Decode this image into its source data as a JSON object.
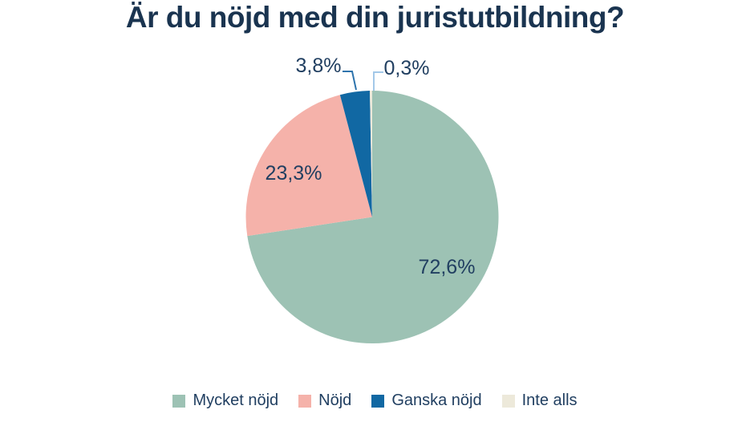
{
  "page": {
    "background": "#FFFFFF"
  },
  "chart_data": {
    "type": "pie",
    "title": "Är du nöjd med din juristutbildning?",
    "categories": [
      "Mycket nöjd",
      "Nöjd",
      "Ganska nöjd",
      "Inte alls"
    ],
    "values": [
      72.6,
      23.3,
      3.8,
      0.3
    ],
    "value_labels": [
      "72,6%",
      "23,3%",
      "3,8%",
      "0,3%"
    ],
    "colors": [
      "#9DC2B4",
      "#F5B2AA",
      "#1168A3",
      "#EDE9DA"
    ],
    "leader_colors": [
      null,
      null,
      "#2E74AD",
      "#A3C8E8"
    ],
    "start_angle_deg": 0,
    "direction": "clockwise",
    "legend_position": "bottom",
    "title_color": "#1A3450",
    "text_color": "#213F61"
  }
}
